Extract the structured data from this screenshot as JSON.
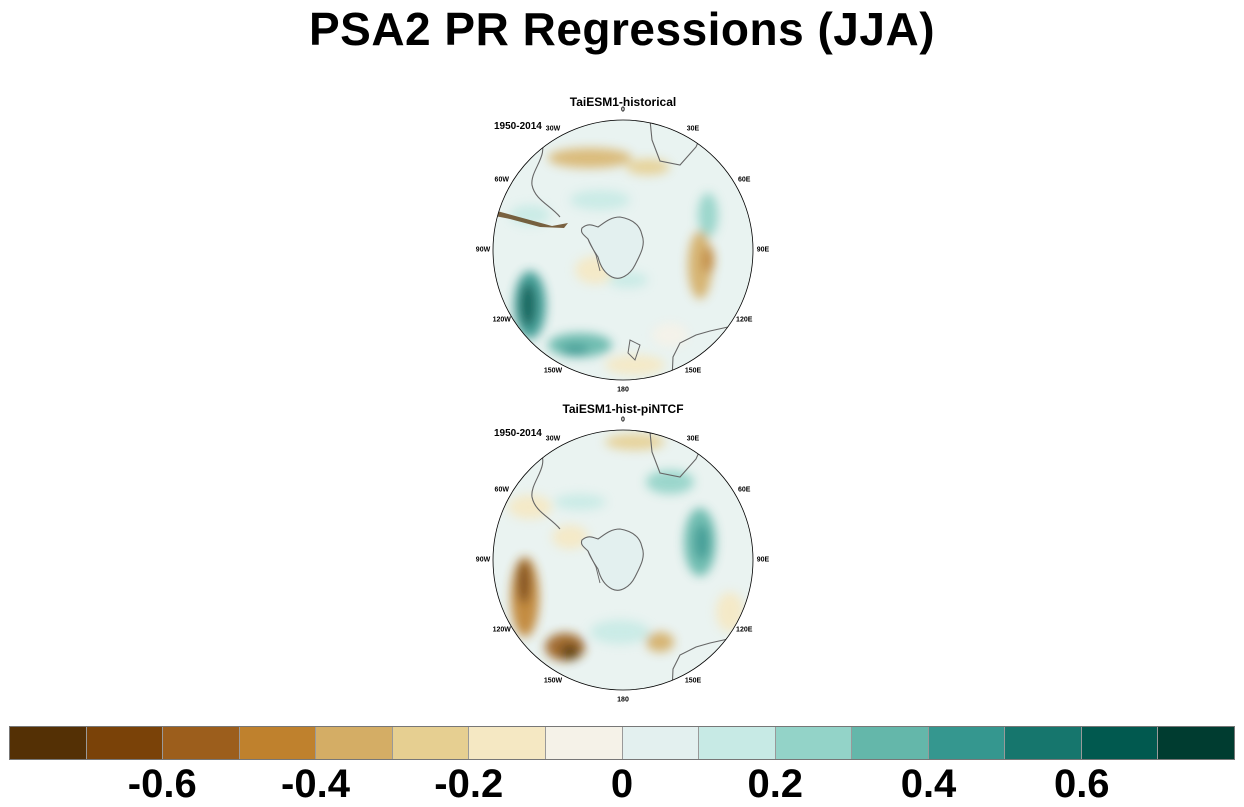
{
  "title": "PSA2 PR Regressions (JJA)",
  "panels": [
    {
      "title": "TaiESM1-historical",
      "period": "1950-2014",
      "lon_labels": [
        "0",
        "30E",
        "60E",
        "90E",
        "120E",
        "150E",
        "180",
        "150W",
        "120W",
        "90W",
        "60W",
        "30W"
      ]
    },
    {
      "title": "TaiESM1-hist-piNTCF",
      "period": "1950-2014",
      "lon_labels": [
        "0",
        "30E",
        "60E",
        "90E",
        "120E",
        "150E",
        "180",
        "150W",
        "120W",
        "90W",
        "60W",
        "30W"
      ]
    }
  ],
  "colorbar": {
    "colors": [
      "#543005",
      "#7a4208",
      "#9c5e1c",
      "#bf812d",
      "#d4ad65",
      "#e6cf91",
      "#f5e8c3",
      "#f5f2e8",
      "#e3f0ef",
      "#c7eae5",
      "#93d3c8",
      "#64b7aa",
      "#35978f",
      "#16766d",
      "#01594f",
      "#003c30"
    ],
    "labels": [
      "-0.6",
      "-0.4",
      "-0.2",
      "0",
      "0.2",
      "0.4",
      "0.6"
    ]
  }
}
